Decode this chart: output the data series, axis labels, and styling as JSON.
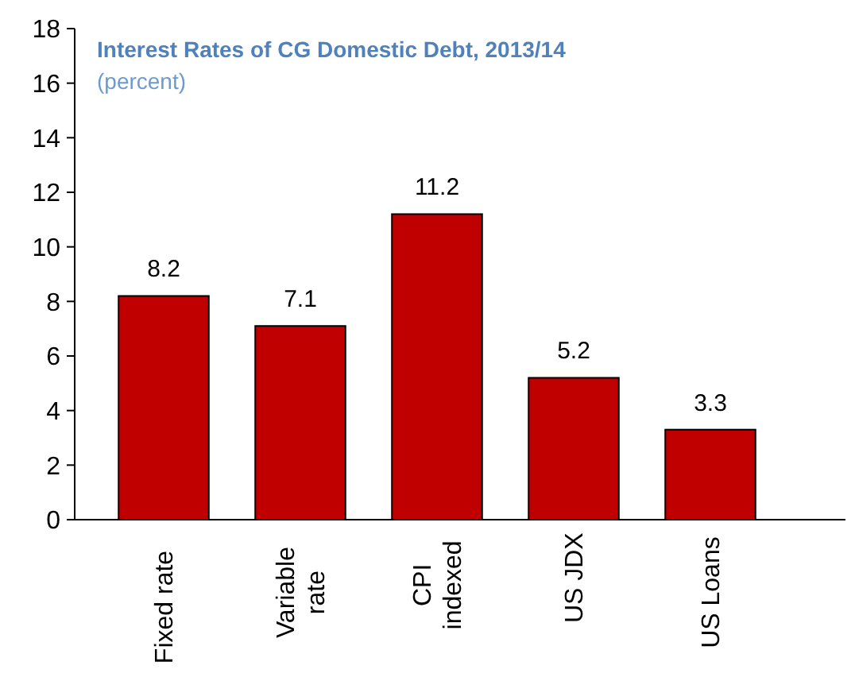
{
  "chart_data": {
    "type": "bar",
    "title": "Interest Rates of CG Domestic Debt, 2013/14",
    "subtitle": "(percent)",
    "categories": [
      "Fixed rate",
      "Variable\nrate",
      "CPI\nindexed",
      "US JDX",
      "US Loans"
    ],
    "values": [
      8.2,
      7.1,
      11.2,
      5.2,
      3.3
    ],
    "color": "#c00000",
    "data_labels": true,
    "ylim": [
      0,
      18
    ],
    "yticks": [
      0,
      2,
      4,
      6,
      8,
      10,
      12,
      14,
      16,
      18
    ],
    "grid": false
  }
}
